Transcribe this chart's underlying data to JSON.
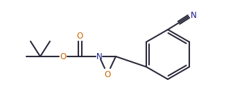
{
  "bg_color": "#ffffff",
  "line_color": "#2a2a3a",
  "atom_colors": {
    "O": "#cc6600",
    "N": "#1a1a8a",
    "bond": "#2a2a3a"
  },
  "linewidth": 1.5,
  "figsize": [
    3.62,
    1.51
  ],
  "dpi": 100
}
